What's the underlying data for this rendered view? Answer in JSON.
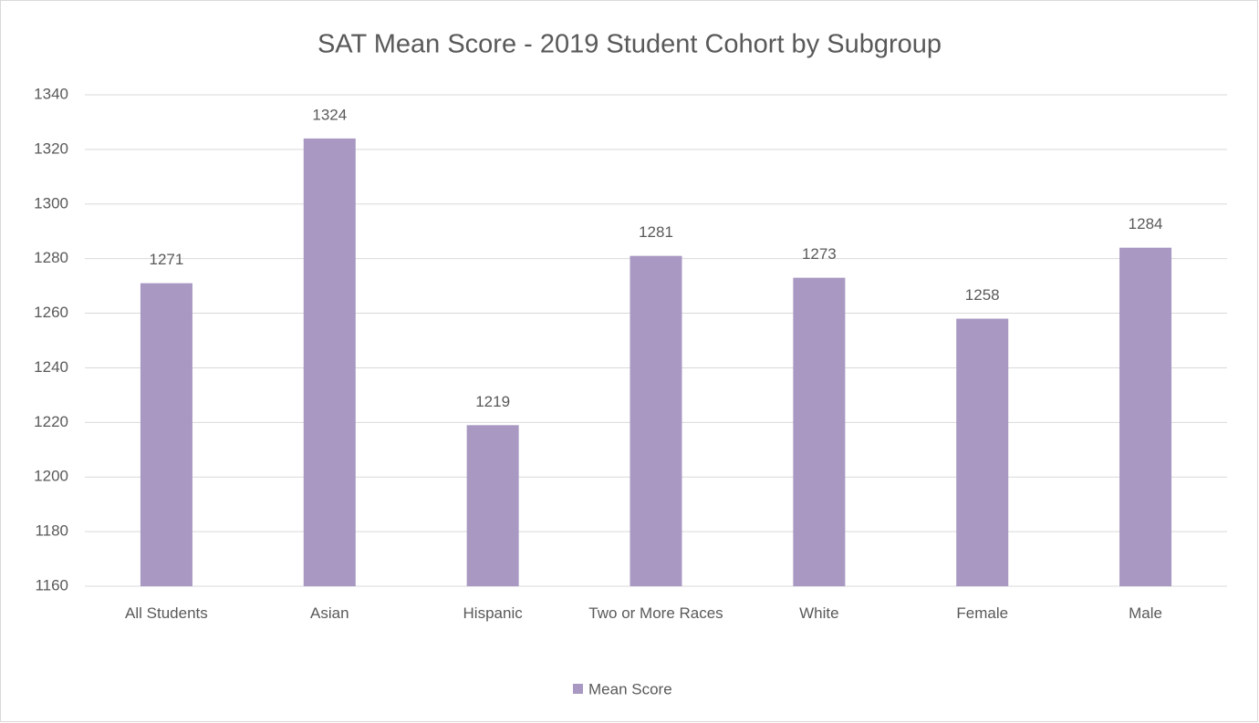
{
  "chart_data": {
    "type": "bar",
    "title": "SAT Mean Score - 2019 Student Cohort by Subgroup",
    "categories": [
      "All Students",
      "Asian",
      "Hispanic",
      "Two or More Races",
      "White",
      "Female",
      "Male"
    ],
    "series": [
      {
        "name": "Mean Score",
        "color": "#a898c2",
        "values": [
          1271,
          1324,
          1219,
          1281,
          1273,
          1258,
          1284
        ]
      }
    ],
    "ylim": [
      1160,
      1340
    ],
    "yticks": [
      1160,
      1180,
      1200,
      1220,
      1240,
      1260,
      1280,
      1300,
      1320,
      1340
    ],
    "grid": true,
    "legend": "bottom"
  }
}
